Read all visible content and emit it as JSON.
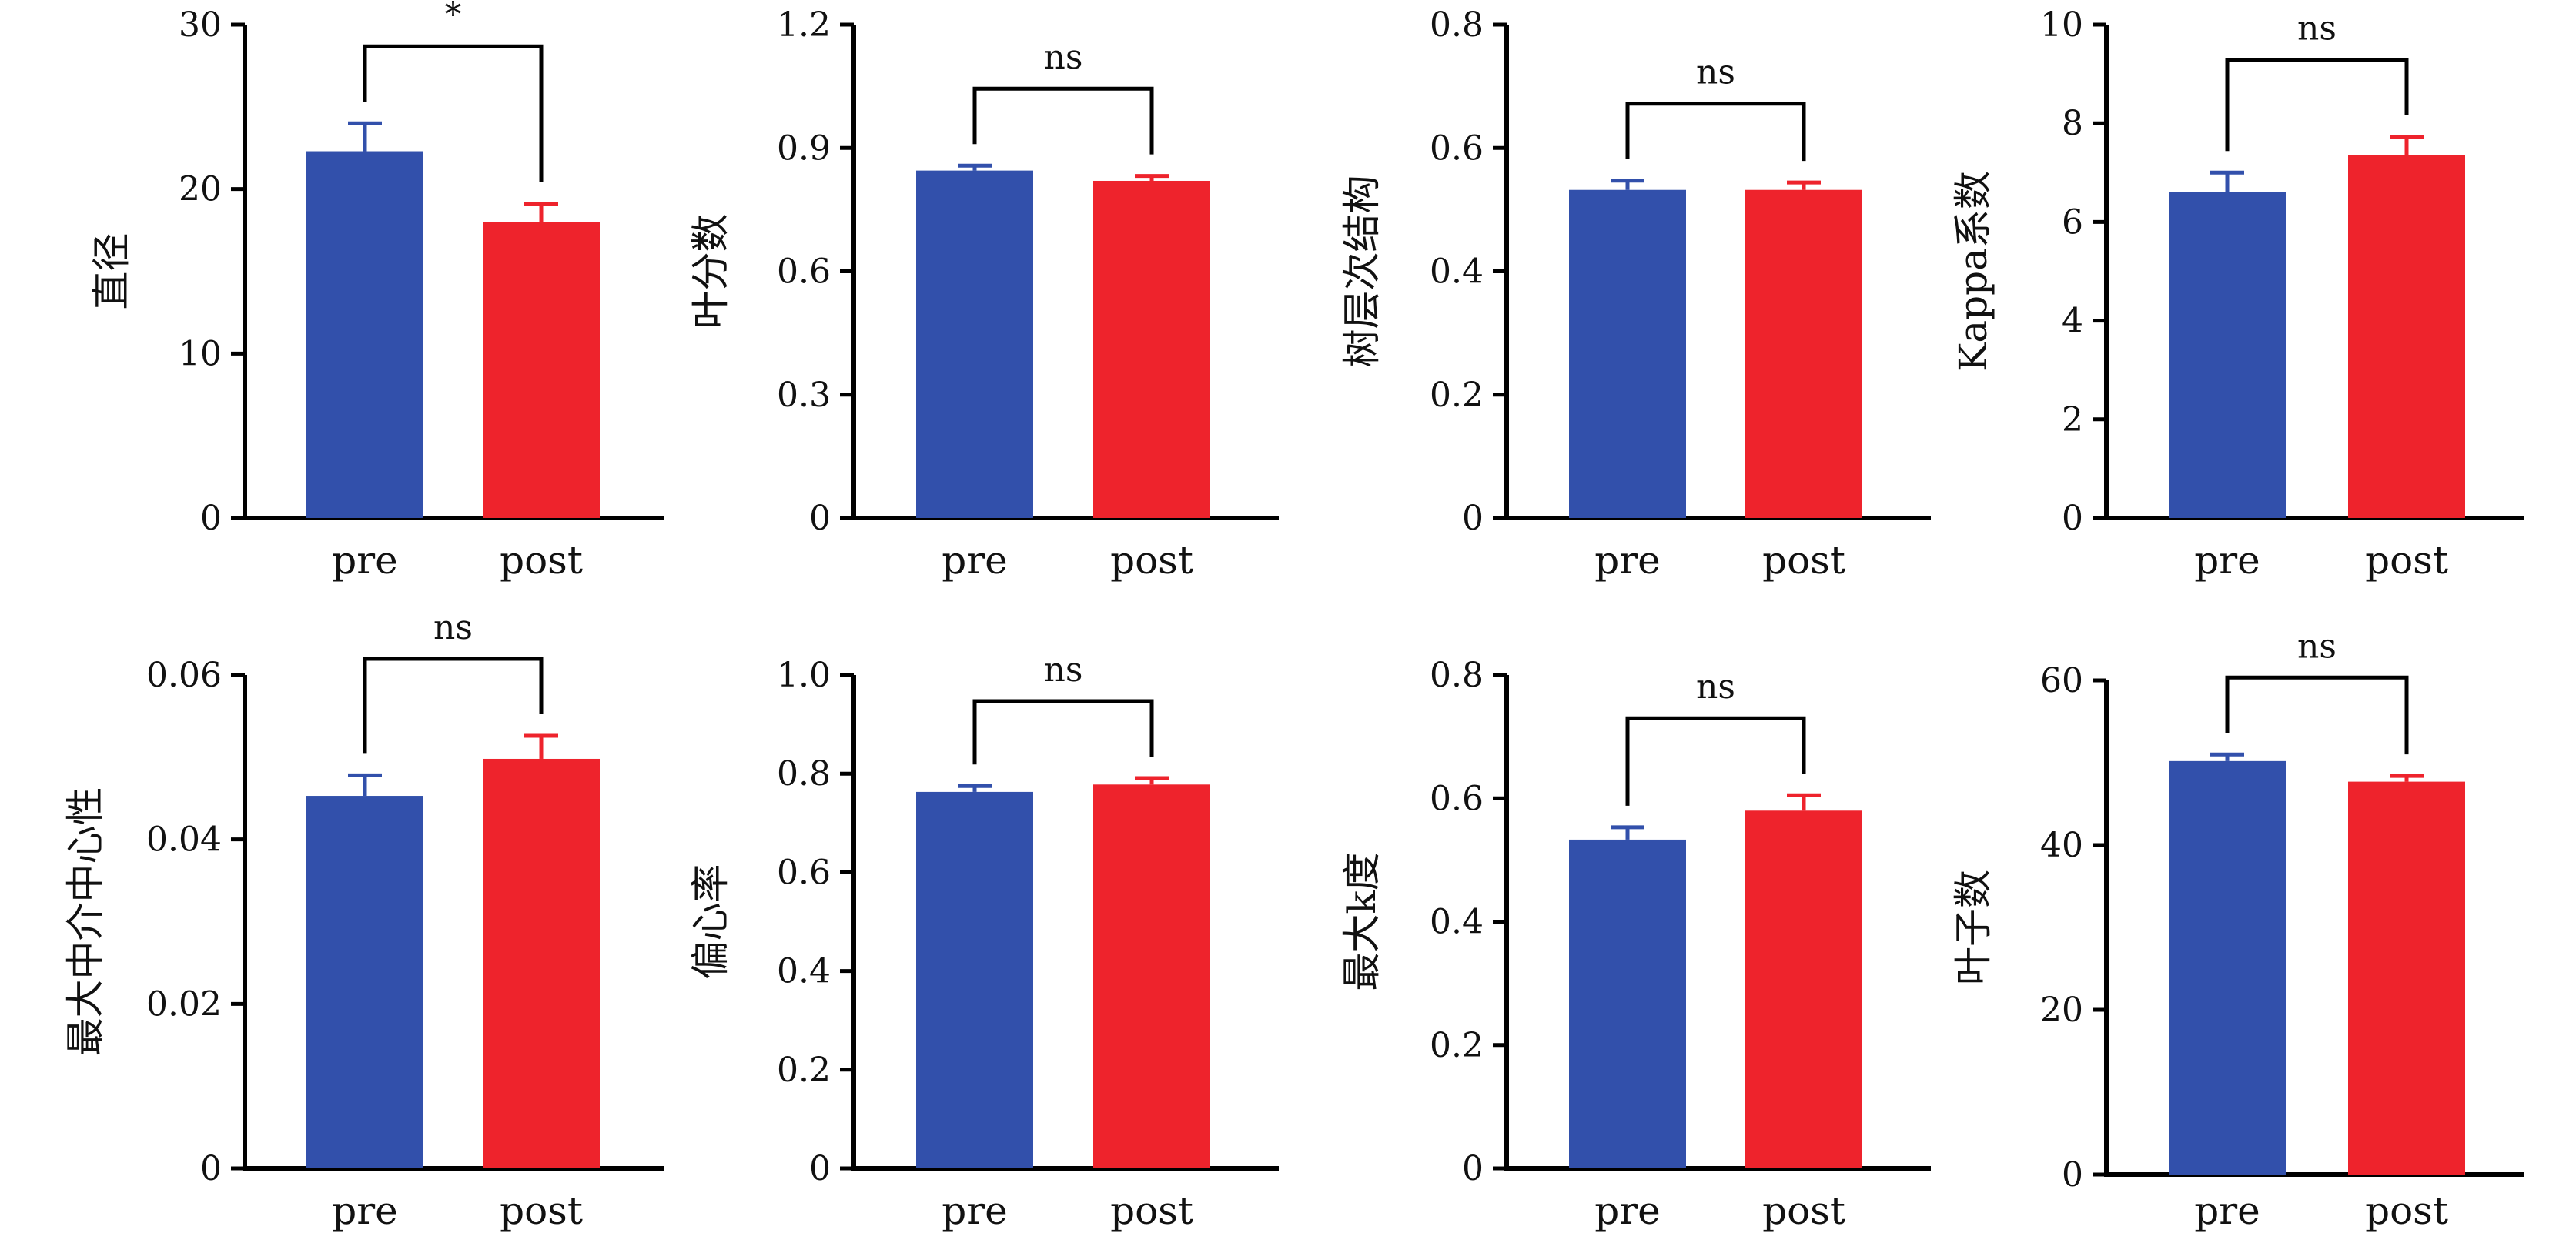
{
  "colors": {
    "pre": "#3250ab",
    "post": "#ee232c",
    "axis": "#000000"
  },
  "chart_data": [
    {
      "type": "bar",
      "ylabel": "直径",
      "categories": [
        "pre",
        "post"
      ],
      "values": [
        22.3,
        18.0
      ],
      "errors": [
        1.7,
        1.1
      ],
      "ylim": [
        0,
        30
      ],
      "yticks": [
        0,
        10,
        20,
        30
      ],
      "tick_labels": [
        "0",
        "10",
        "20",
        "30"
      ],
      "significance": "*",
      "grid": false
    },
    {
      "type": "bar",
      "ylabel": "叶分数",
      "categories": [
        "pre",
        "post"
      ],
      "values": [
        0.845,
        0.82
      ],
      "errors": [
        0.012,
        0.012
      ],
      "ylim": [
        0,
        1.2
      ],
      "yticks": [
        0,
        0.3,
        0.6,
        0.9,
        1.2
      ],
      "tick_labels": [
        "0",
        "0.3",
        "0.6",
        "0.9",
        "1.2"
      ],
      "significance": "ns",
      "grid": false
    },
    {
      "type": "bar",
      "ylabel": "树层次结构",
      "categories": [
        "pre",
        "post"
      ],
      "values": [
        0.532,
        0.532
      ],
      "errors": [
        0.015,
        0.012
      ],
      "ylim": [
        0,
        0.8
      ],
      "yticks": [
        0,
        0.2,
        0.4,
        0.6,
        0.8
      ],
      "tick_labels": [
        "0",
        "0.2",
        "0.4",
        "0.6",
        "0.8"
      ],
      "significance": "ns",
      "grid": false
    },
    {
      "type": "bar",
      "ylabel": "Kappa系数",
      "categories": [
        "pre",
        "post"
      ],
      "values": [
        6.6,
        7.35
      ],
      "errors": [
        0.4,
        0.38
      ],
      "ylim": [
        0,
        10
      ],
      "yticks": [
        0,
        2,
        4,
        6,
        8,
        10
      ],
      "tick_labels": [
        "0",
        "2",
        "4",
        "6",
        "8",
        "10"
      ],
      "significance": "ns",
      "grid": false
    },
    {
      "type": "bar",
      "ylabel": "最大中介中心性",
      "categories": [
        "pre",
        "post"
      ],
      "values": [
        0.0453,
        0.0498
      ],
      "errors": [
        0.0025,
        0.0028
      ],
      "ylim": [
        0,
        0.06
      ],
      "yticks": [
        0,
        0.02,
        0.04,
        0.06
      ],
      "tick_labels": [
        "0",
        "0.02",
        "0.04",
        "0.06"
      ],
      "significance": "ns",
      "grid": false
    },
    {
      "type": "bar",
      "ylabel": "偏心率",
      "categories": [
        "pre",
        "post"
      ],
      "values": [
        0.763,
        0.778
      ],
      "errors": [
        0.012,
        0.013
      ],
      "ylim": [
        0,
        1.0
      ],
      "yticks": [
        0,
        0.2,
        0.4,
        0.6,
        0.8,
        1.0
      ],
      "tick_labels": [
        "0",
        "0.2",
        "0.4",
        "0.6",
        "0.8",
        "1.0"
      ],
      "significance": "ns",
      "grid": false
    },
    {
      "type": "bar",
      "ylabel": "最大k度",
      "categories": [
        "pre",
        "post"
      ],
      "values": [
        0.533,
        0.58
      ],
      "errors": [
        0.02,
        0.025
      ],
      "ylim": [
        0,
        0.8
      ],
      "yticks": [
        0,
        0.2,
        0.4,
        0.6,
        0.8
      ],
      "tick_labels": [
        "0",
        "0.2",
        "0.4",
        "0.6",
        "0.8"
      ],
      "significance": "ns",
      "grid": false
    },
    {
      "type": "bar",
      "ylabel": "叶子数",
      "categories": [
        "pre",
        "post"
      ],
      "values": [
        50.2,
        47.7
      ],
      "errors": [
        0.8,
        0.7
      ],
      "ylim": [
        0,
        60
      ],
      "yticks": [
        0,
        20,
        40,
        60
      ],
      "tick_labels": [
        "0",
        "20",
        "40",
        "60"
      ],
      "significance": "ns",
      "grid": false
    }
  ]
}
